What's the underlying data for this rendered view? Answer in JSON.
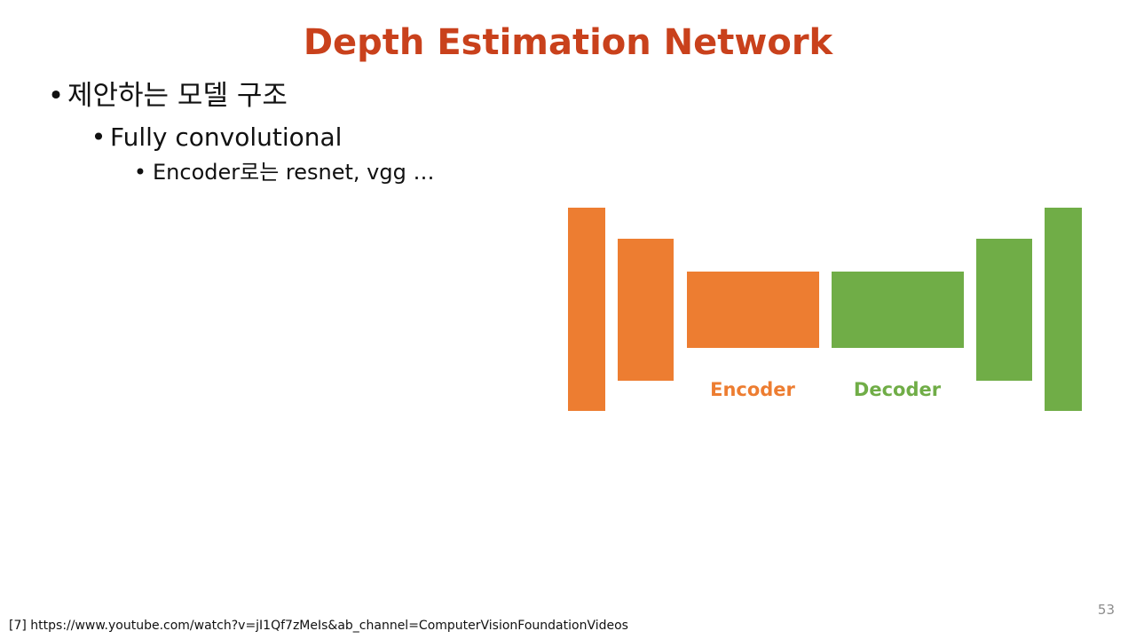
{
  "slide": {
    "title": "Depth Estimation Network",
    "bullets": [
      {
        "marker": "•",
        "text": "제안하는 모델 구조"
      },
      {
        "marker": "•",
        "text": "Fully convolutional"
      },
      {
        "marker": "•",
        "text": "Encoder로는 resnet, vgg …"
      }
    ],
    "page_number": "53",
    "footnote": "[7] https://www.youtube.com/watch?v=jI1Qf7zMeIs&ab_channel=ComputerVisionFoundationVideos"
  },
  "diagram": {
    "encoder_label": "Encoder",
    "decoder_label": "Decoder",
    "colors": {
      "title": "#c9411c",
      "encoder": "#ed7d31",
      "decoder": "#70ad47",
      "page_number": "#8c8c8c"
    }
  }
}
